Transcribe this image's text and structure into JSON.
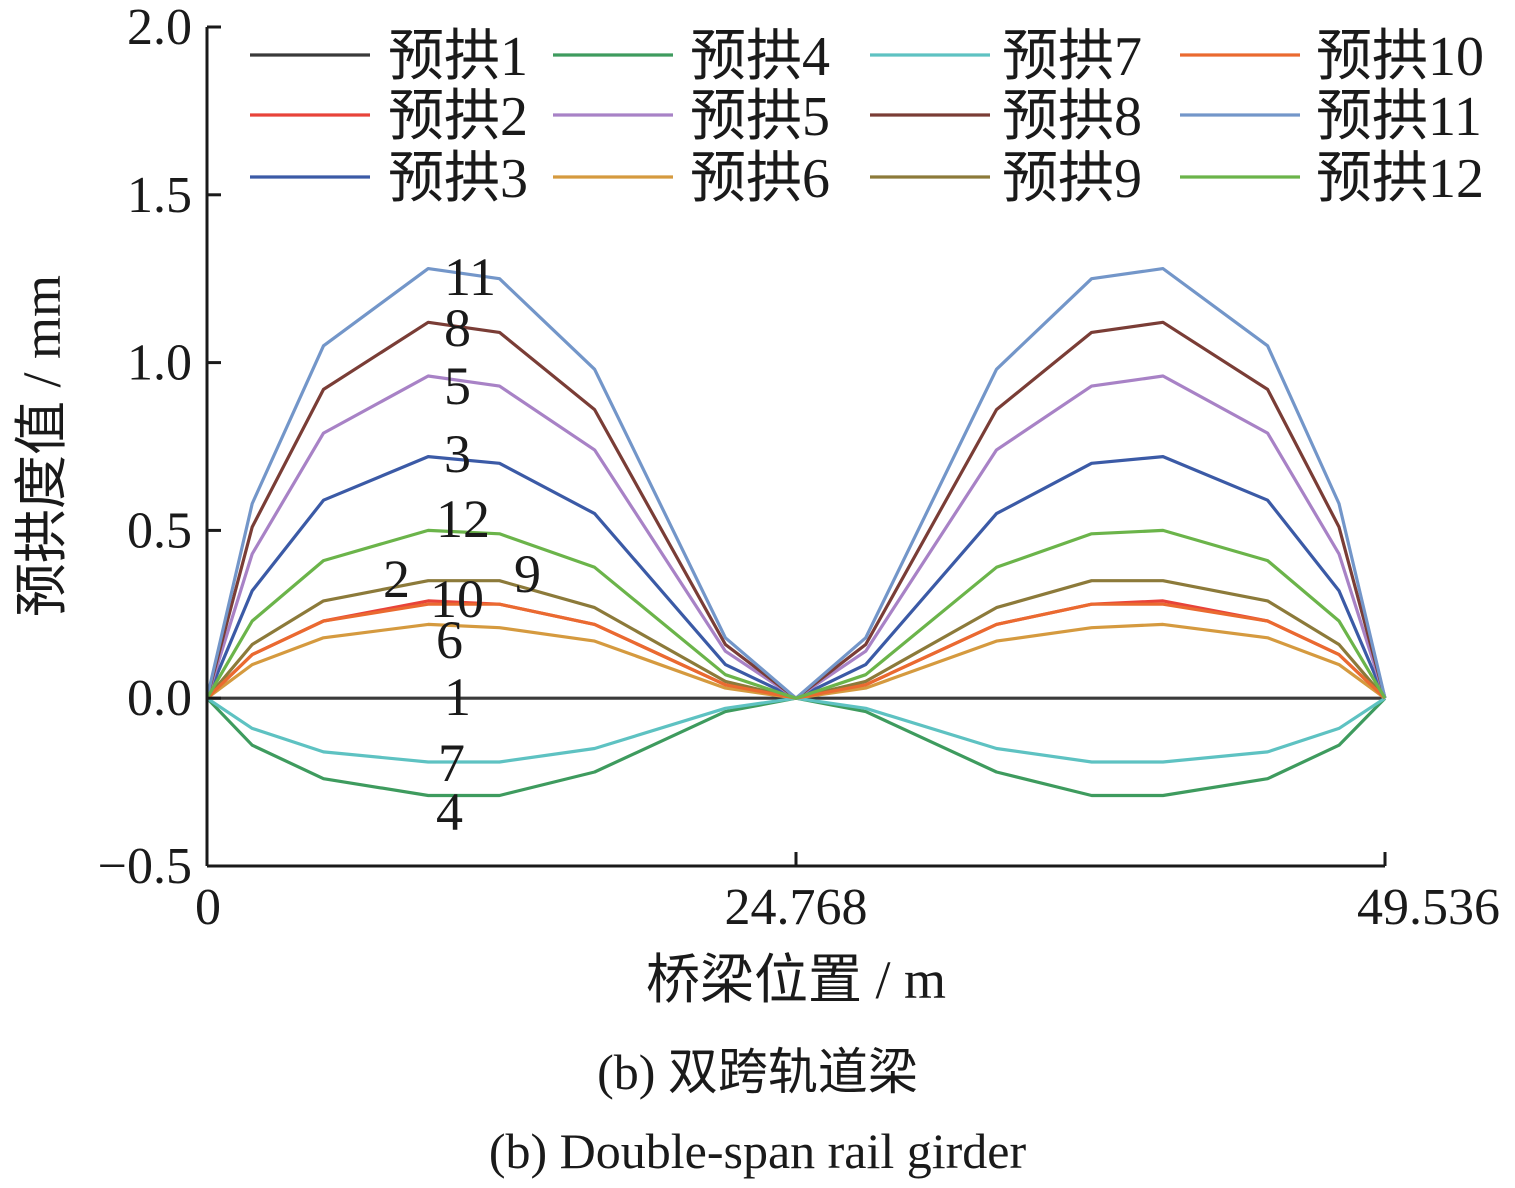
{
  "chart_data": {
    "type": "line",
    "xlabel": "桥梁位置 / m",
    "ylabel": "预拱度值 / mm",
    "xlim": [
      0,
      49.536
    ],
    "ylim": [
      -0.5,
      2.0
    ],
    "x_ticks": [
      "0",
      "24.768",
      "49.536"
    ],
    "y_ticks": [
      "−0.5",
      "0.0",
      "0.5",
      "1.0",
      "1.5",
      "2.0"
    ],
    "legend_position": "top, 3 rows × 4 columns",
    "x": [
      0,
      1.9,
      4.9,
      9.3,
      12.3,
      16.3,
      21.8,
      24.768,
      27.7,
      33.2,
      37.2,
      40.2,
      44.6,
      47.6,
      49.536
    ],
    "series": [
      {
        "name": "预拱1",
        "label": "1",
        "color": "#3a3a3a",
        "values": [
          0,
          0,
          0,
          0,
          0,
          0,
          0,
          0,
          0,
          0,
          0,
          0,
          0,
          0,
          0
        ]
      },
      {
        "name": "预拱2",
        "label": "2",
        "color": "#e8433a",
        "values": [
          0,
          0.13,
          0.23,
          0.29,
          0.28,
          0.22,
          0.04,
          0,
          0.04,
          0.22,
          0.28,
          0.29,
          0.23,
          0.13,
          0
        ]
      },
      {
        "name": "预拱3",
        "label": "3",
        "color": "#3b5aa6",
        "values": [
          0,
          0.32,
          0.59,
          0.72,
          0.7,
          0.55,
          0.1,
          0,
          0.1,
          0.55,
          0.7,
          0.72,
          0.59,
          0.32,
          0
        ]
      },
      {
        "name": "预拱4",
        "label": "4",
        "color": "#3e9b5e",
        "values": [
          0,
          -0.14,
          -0.24,
          -0.29,
          -0.29,
          -0.22,
          -0.04,
          0,
          -0.04,
          -0.22,
          -0.29,
          -0.29,
          -0.24,
          -0.14,
          0
        ]
      },
      {
        "name": "预拱5",
        "label": "5",
        "color": "#a882c6",
        "values": [
          0,
          0.43,
          0.79,
          0.96,
          0.93,
          0.74,
          0.14,
          0,
          0.14,
          0.74,
          0.93,
          0.96,
          0.79,
          0.43,
          0
        ]
      },
      {
        "name": "预拱6",
        "label": "6",
        "color": "#d59a3f",
        "values": [
          0,
          0.1,
          0.18,
          0.22,
          0.21,
          0.17,
          0.03,
          0,
          0.03,
          0.17,
          0.21,
          0.22,
          0.18,
          0.1,
          0
        ]
      },
      {
        "name": "预拱7",
        "label": "7",
        "color": "#5ec2c2",
        "values": [
          0,
          -0.09,
          -0.16,
          -0.19,
          -0.19,
          -0.15,
          -0.03,
          0,
          -0.03,
          -0.15,
          -0.19,
          -0.19,
          -0.16,
          -0.09,
          0
        ]
      },
      {
        "name": "预拱8",
        "label": "8",
        "color": "#7a3d36",
        "values": [
          0,
          0.51,
          0.92,
          1.12,
          1.09,
          0.86,
          0.16,
          0,
          0.16,
          0.86,
          1.09,
          1.12,
          0.92,
          0.51,
          0
        ]
      },
      {
        "name": "预拱9",
        "label": "9",
        "color": "#8c7a3a",
        "values": [
          0,
          0.16,
          0.29,
          0.35,
          0.35,
          0.27,
          0.05,
          0,
          0.05,
          0.27,
          0.35,
          0.35,
          0.29,
          0.16,
          0
        ]
      },
      {
        "name": "预拱10",
        "label": "10",
        "color": "#ea6a30",
        "values": [
          0,
          0.13,
          0.23,
          0.28,
          0.28,
          0.22,
          0.04,
          0,
          0.04,
          0.22,
          0.28,
          0.28,
          0.23,
          0.13,
          0
        ]
      },
      {
        "name": "预拱11",
        "label": "11",
        "color": "#7396c9",
        "values": [
          0,
          0.58,
          1.05,
          1.28,
          1.25,
          0.98,
          0.18,
          0,
          0.18,
          0.98,
          1.25,
          1.28,
          1.05,
          0.58,
          0
        ]
      },
      {
        "name": "预拱12",
        "label": "12",
        "color": "#6bb44a",
        "values": [
          0,
          0.23,
          0.41,
          0.5,
          0.49,
          0.39,
          0.07,
          0,
          0.07,
          0.39,
          0.49,
          0.5,
          0.41,
          0.23,
          0
        ]
      }
    ]
  },
  "captions": {
    "zh": "(b) 双跨轨道梁",
    "en": "(b) Double-span rail girder"
  }
}
